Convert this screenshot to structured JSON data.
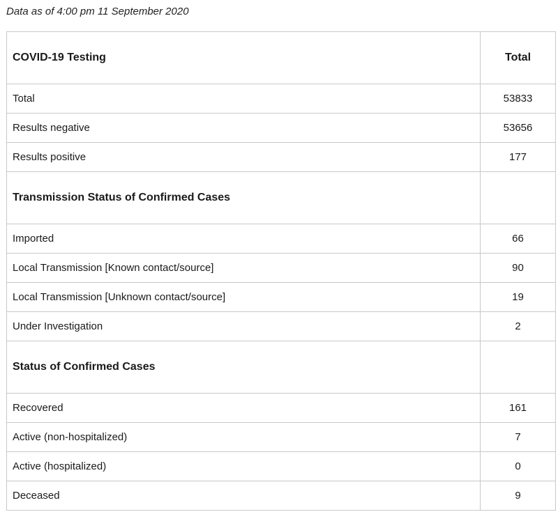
{
  "as_of": "Data as of 4:00 pm 11 September 2020",
  "table": {
    "header": {
      "label": "COVID-19 Testing",
      "value": "Total"
    },
    "testing_rows": [
      {
        "label": "Total",
        "value": "53833"
      },
      {
        "label": "Results negative",
        "value": "53656"
      },
      {
        "label": "Results positive",
        "value": "177"
      }
    ],
    "transmission_heading": "Transmission Status of Confirmed Cases",
    "transmission_rows": [
      {
        "label": "Imported",
        "value": "66"
      },
      {
        "label": "Local Transmission [Known contact/source]",
        "value": "90"
      },
      {
        "label": "Local Transmission [Unknown contact/source]",
        "value": "19"
      },
      {
        "label": "Under Investigation",
        "value": "2"
      }
    ],
    "status_heading": "Status of Confirmed Cases",
    "status_rows": [
      {
        "label": "Recovered",
        "value": "161"
      },
      {
        "label": "Active (non-hospitalized)",
        "value": "7"
      },
      {
        "label": "Active (hospitalized)",
        "value": "0"
      },
      {
        "label": "Deceased",
        "value": "9"
      }
    ]
  }
}
